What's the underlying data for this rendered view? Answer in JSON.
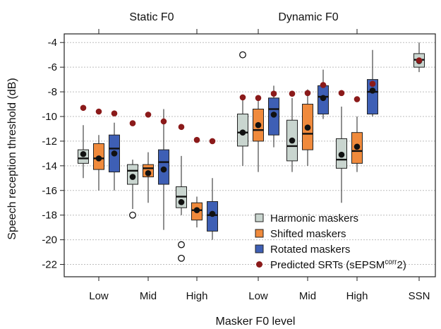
{
  "chart_data": {
    "type": "box",
    "title": "",
    "xlabel": "Masker F0 level",
    "ylabel": "Speech reception threshold (dB)",
    "ylim": [
      -23,
      -3.3
    ],
    "yticks": [
      -4,
      -6,
      -8,
      -10,
      -12,
      -14,
      -16,
      -18,
      -20,
      -22
    ],
    "grid": "horizontal dotted",
    "top_groups": [
      {
        "label": "Static F0",
        "categories": [
          "Low",
          "Mid",
          "High"
        ]
      },
      {
        "label": "Dynamic F0",
        "categories": [
          "Low",
          "Mid",
          "High"
        ]
      }
    ],
    "categories": [
      "Low",
      "Mid",
      "High",
      "Low",
      "Mid",
      "High",
      "SSN"
    ],
    "legend": {
      "position": "bottom-right",
      "items": [
        {
          "label": "Harmonic maskers",
          "color": "#c9d5cf",
          "marker": "square"
        },
        {
          "label": "Shifted maskers",
          "color": "#f08a3c",
          "marker": "square"
        },
        {
          "label": "Rotated maskers",
          "color": "#3e5fb5",
          "marker": "square"
        },
        {
          "label": "Predicted SRTs (sEPSM",
          "sup": "corr",
          "suffix": "2)",
          "color": "#8b1a1a",
          "marker": "circle"
        }
      ]
    },
    "series": [
      {
        "name": "Harmonic maskers",
        "color": "#c9d5cf",
        "boxes": [
          {
            "category": 0,
            "whisker_low": -15.0,
            "q1": -13.8,
            "median": -13.4,
            "q3": -12.7,
            "whisker_high": -10.7,
            "mean": -13.05,
            "outliers": [],
            "predicted": -9.3
          },
          {
            "category": 1,
            "whisker_low": -17.5,
            "q1": -15.5,
            "median": -14.4,
            "q3": -13.9,
            "whisker_high": -13.5,
            "mean": -14.9,
            "outliers": [
              -18.0
            ],
            "predicted": -10.55
          },
          {
            "category": 2,
            "whisker_low": -18.0,
            "q1": -17.4,
            "median": -16.5,
            "q3": -15.7,
            "whisker_high": -13.2,
            "mean": -16.95,
            "outliers": [
              -20.4,
              -21.5
            ],
            "predicted": -10.85
          },
          {
            "category": 3,
            "whisker_low": -14.0,
            "q1": -12.4,
            "median": -11.3,
            "q3": -9.8,
            "whisker_high": -8.5,
            "mean": -11.3,
            "outliers": [
              -5.0
            ],
            "predicted": -8.45
          },
          {
            "category": 4,
            "whisker_low": -14.5,
            "q1": -13.6,
            "median": -12.4,
            "q3": -10.3,
            "whisker_high": -8.5,
            "mean": -11.95,
            "outliers": [],
            "predicted": -8.15
          },
          {
            "category": 5,
            "whisker_low": -17.0,
            "q1": -14.2,
            "median": -13.5,
            "q3": -11.8,
            "whisker_high": -9.2,
            "mean": -13.1,
            "outliers": [],
            "predicted": -8.1
          },
          {
            "category": 6,
            "whisker_low": -6.4,
            "q1": -6.0,
            "median": -5.4,
            "q3": -4.9,
            "whisker_high": -4.0,
            "mean": -5.5,
            "outliers": [],
            "predicted": -5.45
          }
        ]
      },
      {
        "name": "Shifted maskers",
        "color": "#f08a3c",
        "boxes": [
          {
            "category": 0,
            "whisker_low": -16.0,
            "q1": -14.3,
            "median": -13.4,
            "q3": -12.2,
            "whisker_high": -11.5,
            "mean": -13.4,
            "outliers": [],
            "predicted": -9.6
          },
          {
            "category": 1,
            "whisker_low": -17.0,
            "q1": -14.9,
            "median": -14.2,
            "q3": -13.9,
            "whisker_high": -12.9,
            "mean": -14.6,
            "outliers": [],
            "predicted": -9.85
          },
          {
            "category": 2,
            "whisker_low": -19.0,
            "q1": -18.4,
            "median": -17.6,
            "q3": -17.0,
            "whisker_high": -16.5,
            "mean": -17.6,
            "outliers": [],
            "predicted": -11.9
          },
          {
            "category": 3,
            "whisker_low": -14.5,
            "q1": -12.0,
            "median": -11.1,
            "q3": -9.4,
            "whisker_high": -8.5,
            "mean": -10.7,
            "outliers": [],
            "predicted": -8.5
          },
          {
            "category": 4,
            "whisker_low": -14.0,
            "q1": -12.7,
            "median": -11.4,
            "q3": -9.0,
            "whisker_high": -7.8,
            "mean": -10.9,
            "outliers": [],
            "predicted": -8.1
          },
          {
            "category": 5,
            "whisker_low": -14.5,
            "q1": -13.8,
            "median": -12.8,
            "q3": -11.3,
            "whisker_high": -10.0,
            "mean": -12.45,
            "outliers": [],
            "predicted": -8.6
          }
        ]
      },
      {
        "name": "Rotated maskers",
        "color": "#3e5fb5",
        "boxes": [
          {
            "category": 0,
            "whisker_low": -16.0,
            "q1": -14.5,
            "median": -12.6,
            "q3": -11.5,
            "whisker_high": -10.5,
            "mean": -13.0,
            "outliers": [],
            "predicted": -9.75
          },
          {
            "category": 1,
            "whisker_low": -19.2,
            "q1": -15.5,
            "median": -13.7,
            "q3": -12.7,
            "whisker_high": -9.4,
            "mean": -14.3,
            "outliers": [],
            "predicted": -10.4
          },
          {
            "category": 2,
            "whisker_low": -20.0,
            "q1": -19.3,
            "median": -18.0,
            "q3": -16.9,
            "whisker_high": -15.0,
            "mean": -17.9,
            "outliers": [],
            "predicted": -12.0
          },
          {
            "category": 3,
            "whisker_low": -12.5,
            "q1": -11.5,
            "median": -9.4,
            "q3": -8.5,
            "whisker_high": -7.5,
            "mean": -9.85,
            "outliers": [],
            "predicted": -8.15
          },
          {
            "category": 4,
            "whisker_low": -10.2,
            "q1": -9.8,
            "median": -8.4,
            "q3": -7.5,
            "whisker_high": -6.2,
            "mean": -8.5,
            "outliers": [],
            "predicted": -7.45
          },
          {
            "category": 5,
            "whisker_low": -10.0,
            "q1": -9.8,
            "median": -8.0,
            "q3": -7.0,
            "whisker_high": -4.6,
            "mean": -7.9,
            "outliers": [],
            "predicted": -7.35
          }
        ]
      }
    ]
  }
}
